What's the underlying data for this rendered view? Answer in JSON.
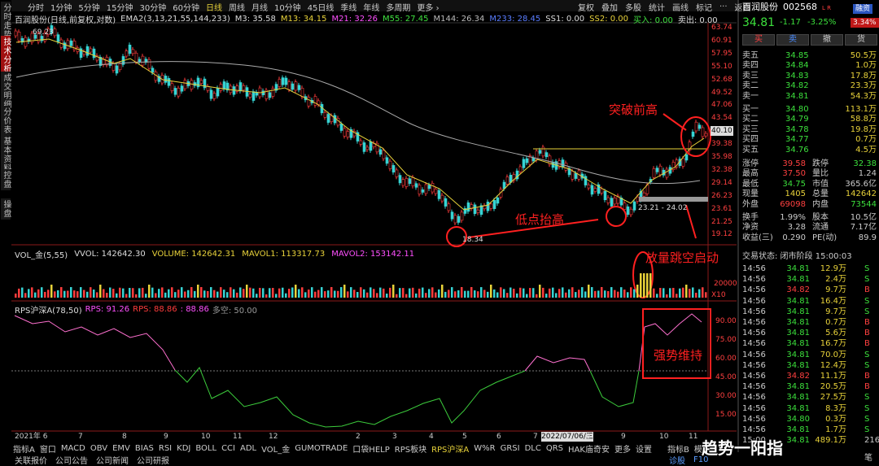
{
  "sidebar": [
    "分时走势",
    "技术分析",
    "成交明细",
    "分价表",
    "基本资料",
    "控盘",
    "操盘"
  ],
  "toolbar": {
    "periods": [
      "分时",
      "1分钟",
      "5分钟",
      "15分钟",
      "30分钟",
      "60分钟",
      "日线",
      "周线",
      "月线",
      "10分钟",
      "45日线",
      "季线",
      "年线",
      "多周期",
      "更多 ›"
    ],
    "active": "日线",
    "tools": [
      "复权",
      "叠加",
      "多股",
      "统计",
      "画线",
      "标记",
      "···",
      "返回"
    ]
  },
  "header": [
    {
      "text": "百润股份(日线,前复权,对数)",
      "color": "#dddddd"
    },
    {
      "text": "EMA2(3,13,21,55,144,233)",
      "color": "#dddddd"
    },
    {
      "text": "M3: 35.58",
      "color": "#dddddd"
    },
    {
      "text": "M13: 34.15",
      "color": "#e8d23a"
    },
    {
      "text": "M21: 32.26",
      "color": "#ff50ff"
    },
    {
      "text": "M55: 27.45",
      "color": "#40e040"
    },
    {
      "text": "M144: 26.34",
      "color": "#bbbbbb"
    },
    {
      "text": "M233: 28.45",
      "color": "#5a7dff"
    },
    {
      "text": "SS1: 0.00",
      "color": "#dddddd"
    },
    {
      "text": "SS2: 0.00",
      "color": "#e8d23a"
    },
    {
      "text": "买入: 0.00",
      "color": "#40e040"
    },
    {
      "text": "卖出: 0.00",
      "color": "#dddddd"
    }
  ],
  "price_axis": [
    "63.74",
    "60.91",
    "57.95",
    "55.10",
    "52.68",
    "49.52",
    "47.06",
    "43.54",
    "40.10",
    "39.38",
    "35.98",
    "32.38",
    "29.14",
    "26.23",
    "23.61",
    "21.25",
    "19.12"
  ],
  "price_marks": {
    "high": "69.23",
    "low": "18.34",
    "range": "23.21 - 24.02"
  },
  "annotations": {
    "breakout": "突破前高",
    "higher_low": "低点抬高",
    "gap_up": "放量跳空启动",
    "strong": "强势维持"
  },
  "volume": {
    "header": [
      {
        "text": "VOL_金(5,55)",
        "color": "#dddddd"
      },
      {
        "text": "VVOL: 142642.30",
        "color": "#dddddd"
      },
      {
        "text": "VOLUME: 142642.31",
        "color": "#e8d23a"
      },
      {
        "text": "MAVOL1: 113317.73",
        "color": "#e8d23a"
      },
      {
        "text": "MAVOL2: 153142.11",
        "color": "#ff50ff"
      }
    ],
    "axis": [
      "20000",
      "X10"
    ]
  },
  "rps": {
    "header": [
      {
        "text": "RPS沪深A(78,50)",
        "color": "#dddddd"
      },
      {
        "text": "RPS: 91.26",
        "color": "#ff50ff"
      },
      {
        "text": "RPS: 88.86",
        "color": "#ff3c3c"
      },
      {
        "text": ": 88.86",
        "color": "#ff50ff"
      },
      {
        "text": "多空: 50.00",
        "color": "#999999"
      }
    ],
    "axis": [
      "90.00",
      "75.00",
      "60.00",
      "45.00",
      "30.00",
      "15.00"
    ]
  },
  "date_axis": [
    "2021年 6",
    "7",
    "8",
    "9",
    "10",
    "11",
    "12",
    "2",
    "3",
    "4",
    "5",
    "6",
    "7",
    "2022/07/06/三",
    "8",
    "9",
    "10",
    "11"
  ],
  "tabs": [
    "指标A",
    "窗口",
    "MACD",
    "OBV",
    "EMV",
    "BIAS",
    "RSI",
    "KDJ",
    "BOLL",
    "CCI",
    "ADL",
    "VOL_金",
    "GUMOTRADE",
    "口袋HELP",
    "RPS板块",
    "RPS沪深A",
    "W%R",
    "GRSI",
    "DLC",
    "QRS",
    "HAK庙奇安",
    "更多",
    "设置"
  ],
  "tabs_right": [
    "指标B",
    "模"
  ],
  "status": [
    "关联报价",
    "公司公告",
    "公司新闻",
    "公司研报"
  ],
  "status_right": [
    "诊股",
    "F10"
  ],
  "quote": {
    "name": "百润股份",
    "code": "002568",
    "flag": "L R",
    "badge": "融资",
    "price": "34.81",
    "change": "-1.17",
    "pct": "-3.25%",
    "side_pct": "3.34%"
  },
  "buttons": [
    "买",
    "卖",
    "撤",
    "货"
  ],
  "orderbook": [
    [
      "卖五",
      "34.85",
      "50.5万"
    ],
    [
      "卖四",
      "34.84",
      "1.0万"
    ],
    [
      "卖三",
      "34.83",
      "17.8万"
    ],
    [
      "卖二",
      "34.82",
      "23.3万"
    ],
    [
      "卖一",
      "34.81",
      "54.3万"
    ],
    [
      "买一",
      "34.80",
      "113.1万"
    ],
    [
      "买二",
      "34.79",
      "58.8万"
    ],
    [
      "买三",
      "34.78",
      "19.8万"
    ],
    [
      "买四",
      "34.77",
      "0.7万"
    ],
    [
      "买五",
      "34.76",
      "4.5万"
    ]
  ],
  "stats": [
    [
      "涨停",
      "39.58",
      "跌停",
      "32.38"
    ],
    [
      "最高",
      "37.50",
      "量比",
      "1.24"
    ],
    [
      "最低",
      "34.75",
      "市值",
      "365.6亿"
    ],
    [
      "现量",
      "1405",
      "总量",
      "142642"
    ],
    [
      "外盘",
      "69098",
      "内盘",
      "73544"
    ],
    [
      "换手",
      "1.99%",
      "股本",
      "10.5亿"
    ],
    [
      "净资",
      "3.28",
      "流通",
      "7.17亿"
    ],
    [
      "收益(三)",
      "0.290",
      "PE(动)",
      "89.9"
    ]
  ],
  "trade_status": "交易状态: 闭市阶段 15:00:03",
  "trades": [
    [
      "14:56",
      "34.81",
      "12.9万",
      "S"
    ],
    [
      "14:56",
      "34.81",
      "2.4万",
      "S"
    ],
    [
      "14:56",
      "34.82",
      "9.7万",
      "B"
    ],
    [
      "14:56",
      "34.81",
      "16.4万",
      "S"
    ],
    [
      "14:56",
      "34.81",
      "9.7万",
      "S"
    ],
    [
      "14:56",
      "34.81",
      "0.7万",
      "B"
    ],
    [
      "14:56",
      "34.81",
      "5.6万",
      "B"
    ],
    [
      "14:56",
      "34.81",
      "16.7万",
      "B"
    ],
    [
      "14:56",
      "34.81",
      "70.0万",
      "S"
    ],
    [
      "14:56",
      "34.81",
      "12.4万",
      "S"
    ],
    [
      "14:56",
      "34.82",
      "11.1万",
      "B"
    ],
    [
      "14:56",
      "34.81",
      "20.5万",
      "B"
    ],
    [
      "14:56",
      "34.81",
      "27.5万",
      "S"
    ],
    [
      "14:56",
      "34.81",
      "8.3万",
      "S"
    ],
    [
      "14:56",
      "34.80",
      "0.3万",
      "S"
    ],
    [
      "14:56",
      "34.81",
      "1.7万",
      "S"
    ],
    [
      "15:00",
      "34.81",
      "489.1万",
      "216"
    ]
  ],
  "corner": "笔",
  "watermark": "趋势一阳指"
}
